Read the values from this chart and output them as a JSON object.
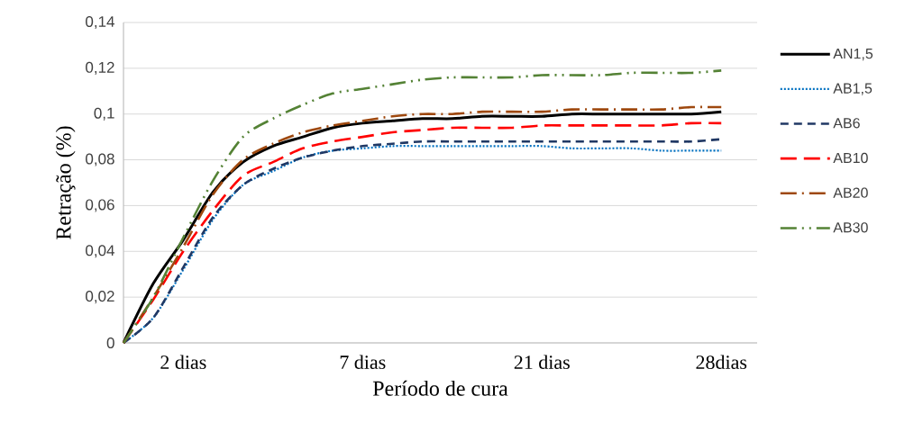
{
  "chart_data": {
    "type": "line",
    "xlabel": "Período de cura",
    "ylabel": "Retração (%)",
    "categories": [
      null,
      null,
      "2 dias",
      null,
      null,
      null,
      null,
      null,
      "7 dias",
      null,
      null,
      null,
      null,
      null,
      "21 dias",
      null,
      null,
      null,
      null,
      null,
      "28dias"
    ],
    "ylim": [
      0,
      0.14
    ],
    "yticks": [
      0,
      {
        "value": 0.02,
        "label": "0,02"
      },
      {
        "value": 0.04,
        "label": "0,04"
      },
      {
        "value": 0.06,
        "label": "0,06"
      },
      {
        "value": 0.08,
        "label": "0,08"
      },
      {
        "value": 0.1,
        "label": "0,1"
      },
      {
        "value": 0.12,
        "label": "0,12"
      },
      {
        "value": 0.14,
        "label": "0,14"
      }
    ],
    "grid": "y",
    "legend": "right",
    "marker": "none",
    "series": [
      {
        "name": "AN1,5",
        "color": "#000000",
        "line_style": "solid",
        "values": [
          0,
          0.026,
          0.045,
          0.066,
          0.079,
          0.086,
          0.09,
          0.094,
          0.096,
          0.097,
          0.098,
          0.098,
          0.099,
          0.099,
          0.099,
          0.1,
          0.1,
          0.1,
          0.1,
          0.1,
          0.101
        ]
      },
      {
        "name": "AB1,5",
        "color": "#0070c0",
        "line_style": "dotted",
        "values": [
          0,
          0.011,
          0.032,
          0.054,
          0.069,
          0.075,
          0.081,
          0.084,
          0.085,
          0.086,
          0.086,
          0.086,
          0.086,
          0.086,
          0.086,
          0.085,
          0.085,
          0.085,
          0.084,
          0.084,
          0.084
        ]
      },
      {
        "name": "AB6",
        "color": "#203864",
        "line_style": "dashed",
        "values": [
          0,
          0.011,
          0.033,
          0.055,
          0.069,
          0.076,
          0.081,
          0.084,
          0.086,
          0.087,
          0.088,
          0.088,
          0.088,
          0.088,
          0.088,
          0.088,
          0.088,
          0.088,
          0.088,
          0.088,
          0.089
        ]
      },
      {
        "name": "AB10",
        "color": "#ff0000",
        "line_style": "long dashed",
        "values": [
          0,
          0.019,
          0.04,
          0.058,
          0.073,
          0.079,
          0.085,
          0.088,
          0.09,
          0.092,
          0.093,
          0.094,
          0.094,
          0.094,
          0.095,
          0.095,
          0.095,
          0.095,
          0.095,
          0.096,
          0.096
        ]
      },
      {
        "name": "AB20",
        "color": "#9e480e",
        "line_style": "dashdot",
        "values": [
          0,
          0.02,
          0.042,
          0.065,
          0.08,
          0.087,
          0.092,
          0.095,
          0.097,
          0.099,
          0.1,
          0.1,
          0.101,
          0.101,
          0.101,
          0.102,
          0.102,
          0.102,
          0.102,
          0.103,
          0.103
        ]
      },
      {
        "name": "AB30",
        "color": "#548235",
        "line_style": "dashdotdot",
        "values": [
          0,
          0.02,
          0.046,
          0.071,
          0.09,
          0.098,
          0.104,
          0.109,
          0.111,
          0.113,
          0.115,
          0.116,
          0.116,
          0.116,
          0.117,
          0.117,
          0.117,
          0.118,
          0.118,
          0.118,
          0.119
        ]
      }
    ]
  }
}
